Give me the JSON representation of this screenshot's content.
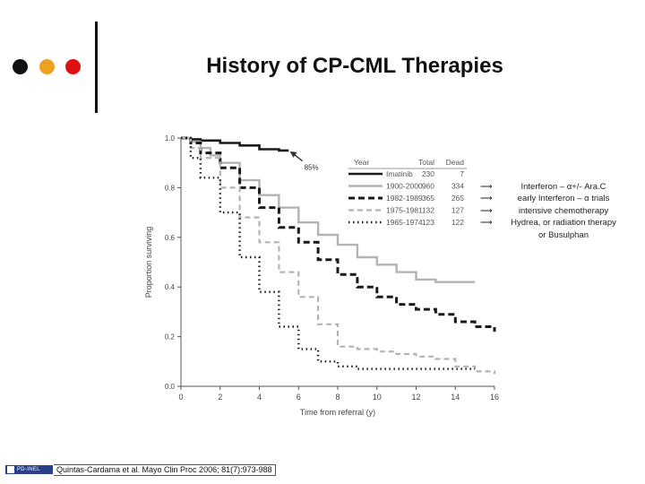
{
  "slide": {
    "title": "History of CP-CML Therapies",
    "citation": "Quintas-Cardama et al. Mayo Clin Proc 2006; 81(7):973-988",
    "logo_text": "PD-INEL"
  },
  "colors": {
    "dot_black": "#111111",
    "dot_orange": "#f0a020",
    "dot_red": "#dd1111"
  },
  "notes": {
    "arrow": "⟶",
    "lines": [
      "Interferon – α+/- Ara.C",
      "early Interferon – α trials",
      "intensive chemotherapy",
      "Hydrea, or radiation therapy"
    ],
    "extra": "or Busulphan"
  },
  "chart_data": {
    "type": "line",
    "xlabel": "Time from referral (y)",
    "ylabel": "Proportion surviving",
    "xlim": [
      0,
      16
    ],
    "ylim": [
      0.0,
      1.0
    ],
    "xticks": [
      "0",
      "2",
      "4",
      "6",
      "8",
      "10",
      "12",
      "14",
      "16"
    ],
    "yticks": [
      "0.0",
      "0.2",
      "0.4",
      "0.6",
      "0.8",
      "1.0"
    ],
    "annotation": "85%",
    "legend": {
      "placement": "top-right",
      "headers": [
        "Year",
        "Total",
        "Dead"
      ],
      "rows": [
        {
          "year": "Imatinib",
          "total": "230",
          "dead": "7"
        },
        {
          "year": "1900-2000",
          "total": "960",
          "dead": "334"
        },
        {
          "year": "1982-1989",
          "total": "365",
          "dead": "265"
        },
        {
          "year": "1975-1981",
          "total": "132",
          "dead": "127"
        },
        {
          "year": "1965-1974",
          "total": "123",
          "dead": "122"
        }
      ]
    },
    "series": [
      {
        "name": "Imatinib",
        "style": "solid-thick",
        "color": "#1a1a1a",
        "points": [
          [
            0,
            1.0
          ],
          [
            0.5,
            0.995
          ],
          [
            1,
            0.99
          ],
          [
            2,
            0.98
          ],
          [
            3,
            0.97
          ],
          [
            4,
            0.955
          ],
          [
            5,
            0.95
          ],
          [
            5.5,
            0.95
          ]
        ]
      },
      {
        "name": "1900-2000",
        "style": "solid-gray",
        "color": "#b3b3b3",
        "points": [
          [
            0,
            1.0
          ],
          [
            0.5,
            0.985
          ],
          [
            1,
            0.96
          ],
          [
            1.5,
            0.93
          ],
          [
            2,
            0.9
          ],
          [
            3,
            0.83
          ],
          [
            4,
            0.77
          ],
          [
            5,
            0.72
          ],
          [
            6,
            0.66
          ],
          [
            7,
            0.61
          ],
          [
            8,
            0.57
          ],
          [
            9,
            0.52
          ],
          [
            10,
            0.49
          ],
          [
            11,
            0.46
          ],
          [
            12,
            0.43
          ],
          [
            13,
            0.42
          ],
          [
            14,
            0.42
          ],
          [
            15,
            0.42
          ]
        ]
      },
      {
        "name": "1982-1989",
        "style": "dash-thick",
        "color": "#1a1a1a",
        "points": [
          [
            0,
            1.0
          ],
          [
            0.5,
            0.98
          ],
          [
            1,
            0.94
          ],
          [
            2,
            0.88
          ],
          [
            3,
            0.8
          ],
          [
            4,
            0.72
          ],
          [
            5,
            0.64
          ],
          [
            6,
            0.58
          ],
          [
            7,
            0.51
          ],
          [
            8,
            0.45
          ],
          [
            9,
            0.4
          ],
          [
            10,
            0.36
          ],
          [
            11,
            0.33
          ],
          [
            12,
            0.31
          ],
          [
            13,
            0.29
          ],
          [
            14,
            0.26
          ],
          [
            15,
            0.24
          ],
          [
            16,
            0.22
          ]
        ]
      },
      {
        "name": "1975-1981",
        "style": "dash-gray",
        "color": "#b3b3b3",
        "points": [
          [
            0,
            1.0
          ],
          [
            0.5,
            0.96
          ],
          [
            1,
            0.92
          ],
          [
            2,
            0.8
          ],
          [
            3,
            0.68
          ],
          [
            4,
            0.58
          ],
          [
            5,
            0.46
          ],
          [
            6,
            0.36
          ],
          [
            7,
            0.25
          ],
          [
            8,
            0.16
          ],
          [
            9,
            0.15
          ],
          [
            10,
            0.14
          ],
          [
            11,
            0.13
          ],
          [
            12,
            0.12
          ],
          [
            13,
            0.11
          ],
          [
            14,
            0.08
          ],
          [
            15,
            0.06
          ],
          [
            16,
            0.05
          ]
        ]
      },
      {
        "name": "1965-1974",
        "style": "dotted",
        "color": "#1a1a1a",
        "points": [
          [
            0,
            1.0
          ],
          [
            0.5,
            0.92
          ],
          [
            1,
            0.84
          ],
          [
            2,
            0.7
          ],
          [
            3,
            0.52
          ],
          [
            4,
            0.38
          ],
          [
            5,
            0.24
          ],
          [
            6,
            0.15
          ],
          [
            7,
            0.1
          ],
          [
            8,
            0.08
          ],
          [
            9,
            0.07
          ],
          [
            10,
            0.07
          ],
          [
            11,
            0.07
          ],
          [
            12,
            0.07
          ],
          [
            13,
            0.07
          ],
          [
            14,
            0.07
          ],
          [
            15,
            0.07
          ]
        ]
      }
    ]
  }
}
